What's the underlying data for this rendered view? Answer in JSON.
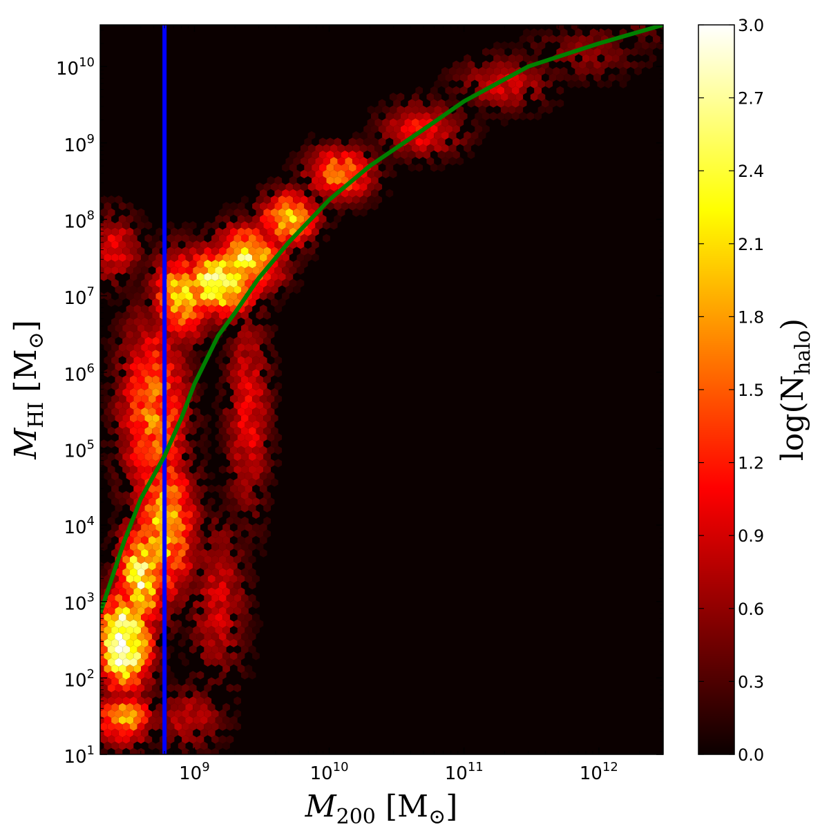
{
  "chart_data": {
    "type": "heatmap",
    "title": "",
    "xlabel": {
      "symbol": "M",
      "subscript": "200",
      "unit": "[M",
      "unit_sub": "⊙",
      "unit_close": "]"
    },
    "ylabel": {
      "symbol": "M",
      "subscript": "HI",
      "unit": "[M",
      "unit_sub": "⊙",
      "unit_close": "]"
    },
    "x_scale": "log",
    "y_scale": "log",
    "xlim": [
      200000000,
      3000000000000
    ],
    "ylim": [
      10,
      35000000000
    ],
    "x_ticks": [
      {
        "value": 1000000000,
        "base": "10",
        "exp": "9"
      },
      {
        "value": 10000000000,
        "base": "10",
        "exp": "10"
      },
      {
        "value": 100000000000,
        "base": "10",
        "exp": "11"
      },
      {
        "value": 1000000000000,
        "base": "10",
        "exp": "12"
      }
    ],
    "y_ticks": [
      {
        "value": 10,
        "base": "10",
        "exp": "1"
      },
      {
        "value": 100,
        "base": "10",
        "exp": "2"
      },
      {
        "value": 1000,
        "base": "10",
        "exp": "3"
      },
      {
        "value": 10000,
        "base": "10",
        "exp": "4"
      },
      {
        "value": 100000,
        "base": "10",
        "exp": "5"
      },
      {
        "value": 1000000,
        "base": "10",
        "exp": "6"
      },
      {
        "value": 10000000,
        "base": "10",
        "exp": "7"
      },
      {
        "value": 100000000,
        "base": "10",
        "exp": "8"
      },
      {
        "value": 1000000000,
        "base": "10",
        "exp": "9"
      },
      {
        "value": 10000000000,
        "base": "10",
        "exp": "10"
      }
    ],
    "vertical_line": {
      "x": 600000000,
      "color": "#0000ff"
    },
    "fit_curve": {
      "color": "#008000",
      "points": [
        [
          200000000,
          700
        ],
        [
          300000000,
          6000
        ],
        [
          400000000,
          22000
        ],
        [
          600000000,
          80000
        ],
        [
          800000000,
          250000
        ],
        [
          1000000000,
          700000
        ],
        [
          1500000000,
          3000000
        ],
        [
          2000000000,
          6000000
        ],
        [
          3000000000,
          17000000
        ],
        [
          5000000000,
          50000000
        ],
        [
          10000000000,
          180000000
        ],
        [
          20000000000,
          500000000
        ],
        [
          50000000000,
          1500000000
        ],
        [
          100000000000,
          3500000000
        ],
        [
          300000000000,
          10000000000
        ],
        [
          1000000000000,
          20000000000
        ],
        [
          3000000000000,
          35000000000
        ]
      ]
    },
    "density_blobs": [
      {
        "x": 300000000,
        "y": 300,
        "value": 3.0,
        "sx": 0.14,
        "sy": 0.45
      },
      {
        "x": 400000000,
        "y": 2000,
        "value": 2.4,
        "sx": 0.12,
        "sy": 0.5
      },
      {
        "x": 600000000,
        "y": 10000,
        "value": 2.0,
        "sx": 0.16,
        "sy": 0.7
      },
      {
        "x": 500000000,
        "y": 300000,
        "value": 1.6,
        "sx": 0.18,
        "sy": 0.9
      },
      {
        "x": 1500000000,
        "y": 15000000,
        "value": 2.6,
        "sx": 0.2,
        "sy": 0.3
      },
      {
        "x": 2500000000,
        "y": 30000000,
        "value": 2.3,
        "sx": 0.18,
        "sy": 0.3
      },
      {
        "x": 800000000,
        "y": 10000000,
        "value": 2.0,
        "sx": 0.15,
        "sy": 0.4
      },
      {
        "x": 5000000000,
        "y": 100000000,
        "value": 2.0,
        "sx": 0.15,
        "sy": 0.25
      },
      {
        "x": 12000000000,
        "y": 400000000,
        "value": 1.6,
        "sx": 0.18,
        "sy": 0.25
      },
      {
        "x": 50000000000,
        "y": 1500000000,
        "value": 1.1,
        "sx": 0.22,
        "sy": 0.25
      },
      {
        "x": 200000000000,
        "y": 6000000000,
        "value": 0.9,
        "sx": 0.25,
        "sy": 0.25
      },
      {
        "x": 800000000000,
        "y": 15000000000,
        "value": 0.6,
        "sx": 0.3,
        "sy": 0.25
      },
      {
        "x": 2000000000000,
        "y": 30000000000,
        "value": 0.4,
        "sx": 0.2,
        "sy": 0.2
      },
      {
        "x": 250000000,
        "y": 40000000,
        "value": 1.0,
        "sx": 0.15,
        "sy": 0.35
      },
      {
        "x": 300000000,
        "y": 30,
        "value": 1.8,
        "sx": 0.15,
        "sy": 0.25
      },
      {
        "x": 900000000,
        "y": 30,
        "value": 0.8,
        "sx": 0.2,
        "sy": 0.3
      },
      {
        "x": 2500000000,
        "y": 300000,
        "value": 1.0,
        "sx": 0.12,
        "sy": 1.0
      },
      {
        "x": 1500000000,
        "y": 1000,
        "value": 0.9,
        "sx": 0.15,
        "sy": 0.8
      }
    ],
    "colorbar": {
      "label": "log(N",
      "label_sub": "halo",
      "label_close": ")",
      "range": [
        0.0,
        3.0
      ],
      "ticks": [
        "0.0",
        "0.3",
        "0.6",
        "0.9",
        "1.2",
        "1.5",
        "1.8",
        "2.1",
        "2.4",
        "2.7",
        "3.0"
      ],
      "colormap": "hot",
      "stops": [
        "#0b0000",
        "#ff0000",
        "#ffff00",
        "#ffffff"
      ]
    },
    "grid": false,
    "legend": "none"
  }
}
